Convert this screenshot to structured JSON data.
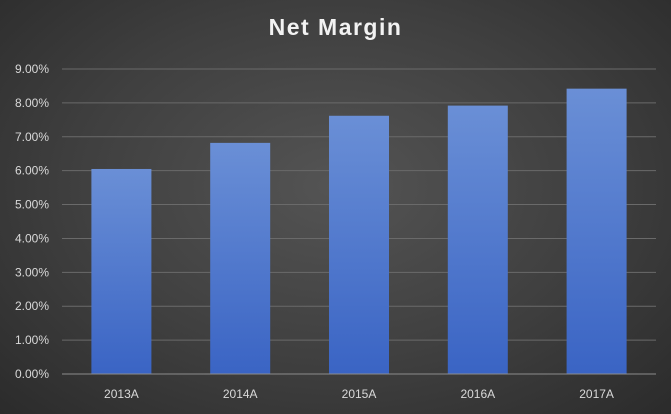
{
  "chart_data": {
    "type": "bar",
    "title": "Net Margin",
    "categories": [
      "2013A",
      "2014A",
      "2015A",
      "2016A",
      "2017A"
    ],
    "values": [
      6.05,
      6.82,
      7.62,
      7.92,
      8.42
    ],
    "ylim": [
      0,
      9
    ],
    "yticks": [
      0,
      1,
      2,
      3,
      4,
      5,
      6,
      7,
      8,
      9
    ],
    "ytick_labels": [
      "0.00%",
      "1.00%",
      "2.00%",
      "3.00%",
      "4.00%",
      "5.00%",
      "6.00%",
      "7.00%",
      "8.00%",
      "9.00%"
    ],
    "xlabel": "",
    "ylabel": "",
    "grid": true,
    "legend": "none",
    "colors": {
      "bar_top": "#6a8fd6",
      "bar_bottom": "#3a64c4",
      "gridline": "#6a6a6a",
      "axis_line": "#8c8c8c",
      "text": "#d9d9d9",
      "title": "#f2f2f2"
    }
  }
}
